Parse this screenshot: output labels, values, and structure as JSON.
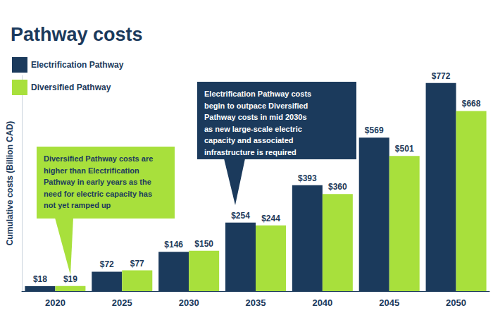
{
  "chart_data": {
    "type": "bar",
    "title": "Pathway costs",
    "y_label": "Cumulative costs (Billion CAD)",
    "categories": [
      "2020",
      "2025",
      "2030",
      "2035",
      "2040",
      "2045",
      "2050"
    ],
    "series": [
      {
        "name": "Electrification Pathway",
        "color": "#1b3a5c",
        "values": [
          18,
          72,
          146,
          254,
          393,
          569,
          772
        ],
        "value_labels": [
          "$18",
          "$72",
          "$146",
          "$254",
          "$393",
          "$569",
          "$772"
        ]
      },
      {
        "name": "Diversified Pathway",
        "color": "#a8e03c",
        "values": [
          19,
          77,
          150,
          244,
          360,
          501,
          668
        ],
        "value_labels": [
          "$19",
          "$77",
          "$150",
          "$244",
          "$360",
          "$501",
          "$668"
        ]
      }
    ],
    "ylim": [
      0,
      800
    ],
    "grid": false,
    "data_labels": true,
    "tick_labels": "x",
    "legend": "top-left",
    "annotations": [
      "Diversified Pathway costs are\nhigher than Electrification\nPathway in early years as the\nneed for electric capacity has\nnot yet ramped up",
      "Electrification Pathway costs\nbegin to outpace Diversified\nPathway costs in mid 2030s\nas new large-scale electric\ncapacity and associated\ninfrastructure is required"
    ]
  }
}
